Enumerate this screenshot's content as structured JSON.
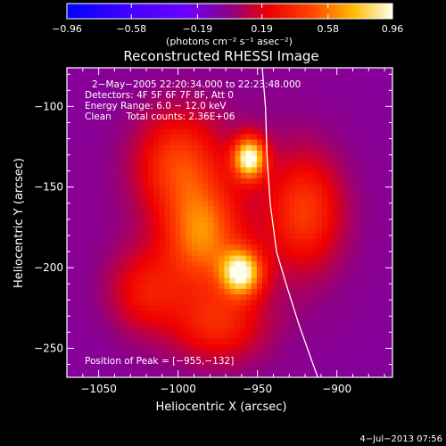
{
  "chart_data": {
    "type": "heatmap",
    "title": "Reconstructed RHESSI Image",
    "xlabel": "Heliocentric X (arcsec)",
    "ylabel": "Heliocentric Y (arcsec)",
    "xlim": [
      -1070,
      -865
    ],
    "ylim": [
      -268,
      -76
    ],
    "xticks": [
      -1050,
      -1000,
      -950,
      -900
    ],
    "yticks": [
      -250,
      -200,
      -150,
      -100
    ],
    "xtick_labels": [
      "−1050",
      "−1000",
      "−950",
      "−900"
    ],
    "ytick_labels": [
      "−250",
      "−200",
      "−150",
      "−100"
    ],
    "colorbar": {
      "min": -0.96,
      "max": 0.96,
      "ticks": [
        -0.96,
        -0.58,
        -0.19,
        0.19,
        0.58,
        0.96
      ],
      "tick_labels": [
        "−0.96",
        "−0.58",
        "−0.19",
        "0.19",
        "0.58",
        "0.96"
      ],
      "unit_label": "(photons cm⁻² s⁻¹ asec⁻²)"
    },
    "annotations": [
      "2−May−2005 22:20:34.000 to 22:23:48.000",
      "Detectors: 4F 5F 6F 7F 8F, Att 0",
      "Energy Range: 6.0 − 12.0 keV",
      "Clean     Total counts: 2.36E+06"
    ],
    "peak_text": "Position of Peak = [−955,−132]",
    "peak": [
      -955,
      -132
    ],
    "sources": [
      {
        "x": -955,
        "y": -132,
        "sigma_x": 7,
        "sigma_y": 9,
        "value": 0.96
      },
      {
        "x": -960,
        "y": -203,
        "sigma_x": 9,
        "sigma_y": 10,
        "value": 0.88
      },
      {
        "x": -985,
        "y": -180,
        "sigma_x": 16,
        "sigma_y": 22,
        "value": 0.55
      },
      {
        "x": -1000,
        "y": -135,
        "sigma_x": 18,
        "sigma_y": 22,
        "value": 0.42
      },
      {
        "x": -920,
        "y": -165,
        "sigma_x": 16,
        "sigma_y": 24,
        "value": 0.4
      },
      {
        "x": -975,
        "y": -235,
        "sigma_x": 20,
        "sigma_y": 16,
        "value": 0.35
      },
      {
        "x": -1020,
        "y": -215,
        "sigma_x": 16,
        "sigma_y": 18,
        "value": 0.3
      }
    ],
    "limb_curve": [
      [
        -947,
        -76
      ],
      [
        -945,
        -100
      ],
      [
        -944,
        -130
      ],
      [
        -942,
        -160
      ],
      [
        -938,
        -190
      ],
      [
        -932,
        -210
      ],
      [
        -924,
        -235
      ],
      [
        -915,
        -260
      ],
      [
        -912,
        -268
      ]
    ],
    "timestamp": "4−Jul−2013 07:56"
  }
}
